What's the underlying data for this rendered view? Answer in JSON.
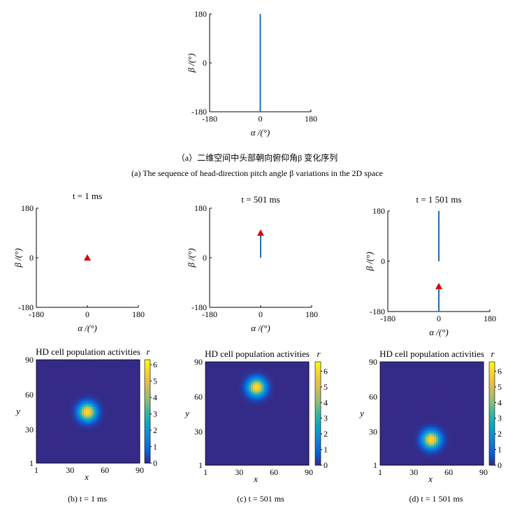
{
  "figure": {
    "caption_a_cn": "（a）二维空间中头部朝向俯仰角β 变化序列",
    "caption_a_en": "(a) The sequence of head-direction pitch angle β variations in the 2D space",
    "caption_b": "(b) t = 1 ms",
    "caption_c": "(c) t = 501 ms",
    "caption_d": "(d) t = 1 501 ms"
  },
  "colors": {
    "trajectory": "#1f6fb5",
    "marker": "#d90000",
    "axis": "#000000"
  },
  "chart_data": [
    {
      "id": "a",
      "type": "line",
      "title": "",
      "xlabel": "α /(°)",
      "ylabel": "β /(°)",
      "xlim": [
        -180,
        180
      ],
      "ylim": [
        -180,
        180
      ],
      "xticks": [
        -180,
        0,
        180
      ],
      "yticks": [
        -180,
        0,
        180
      ],
      "series": [
        {
          "x": [
            0,
            0
          ],
          "y": [
            -180,
            180
          ]
        }
      ]
    },
    {
      "id": "b1",
      "type": "line",
      "title": "t = 1 ms",
      "xlabel": "α /(°)",
      "ylabel": "β /(°)",
      "xlim": [
        -180,
        180
      ],
      "ylim": [
        -180,
        180
      ],
      "xticks": [
        -180,
        0,
        180
      ],
      "yticks": [
        -180,
        0,
        180
      ],
      "series": [],
      "marker": {
        "shape": "triangle",
        "x": 0,
        "y": 0
      }
    },
    {
      "id": "c1",
      "type": "line",
      "title": "t = 501 ms",
      "xlabel": "α /(°)",
      "ylabel": "β /(°)",
      "xlim": [
        -180,
        180
      ],
      "ylim": [
        -180,
        180
      ],
      "xticks": [
        -180,
        0,
        180
      ],
      "yticks": [
        -180,
        0,
        180
      ],
      "series": [
        {
          "x": [
            0,
            0
          ],
          "y": [
            0,
            90
          ]
        }
      ],
      "marker": {
        "shape": "triangle",
        "x": 0,
        "y": 90
      }
    },
    {
      "id": "d1",
      "type": "line",
      "title": "t = 1 501 ms",
      "xlabel": "α /(°)",
      "ylabel": "β /(°)",
      "xlim": [
        -180,
        180
      ],
      "ylim": [
        -180,
        180
      ],
      "xticks": [
        -180,
        0,
        180
      ],
      "yticks": [
        -180,
        0,
        180
      ],
      "series": [
        {
          "x": [
            0,
            0
          ],
          "y": [
            0,
            180
          ]
        },
        {
          "x": [
            0,
            0
          ],
          "y": [
            -180,
            -90
          ]
        }
      ],
      "marker": {
        "shape": "triangle",
        "x": 0,
        "y": -90
      }
    },
    {
      "id": "b2",
      "type": "heatmap",
      "title": "HD cell population activities",
      "xlabel": "x",
      "ylabel": "y",
      "colorbar_label": "r",
      "xlim": [
        1,
        90
      ],
      "ylim": [
        1,
        90
      ],
      "xticks": [
        1,
        30,
        60,
        90
      ],
      "yticks": [
        1,
        30,
        60,
        90
      ],
      "colorbar_ticks": [
        0,
        1,
        2,
        3,
        4,
        5,
        6
      ],
      "clim": [
        0,
        6.3
      ],
      "bump": {
        "x": 45,
        "y": 45,
        "peak": 6.0
      }
    },
    {
      "id": "c2",
      "type": "heatmap",
      "title": "HD cell population activities",
      "xlabel": "x",
      "ylabel": "y",
      "colorbar_label": "r",
      "xlim": [
        1,
        90
      ],
      "ylim": [
        1,
        90
      ],
      "xticks": [
        1,
        30,
        60,
        90
      ],
      "yticks": [
        1,
        30,
        60,
        90
      ],
      "colorbar_ticks": [
        0,
        1,
        2,
        3,
        4,
        5,
        6
      ],
      "clim": [
        0,
        6.6
      ],
      "bump": {
        "x": 45,
        "y": 68,
        "peak": 6.3
      }
    },
    {
      "id": "d2",
      "type": "heatmap",
      "title": "HD cell population activities",
      "xlabel": "x",
      "ylabel": "y",
      "colorbar_label": "r",
      "xlim": [
        1,
        90
      ],
      "ylim": [
        1,
        90
      ],
      "xticks": [
        1,
        30,
        60,
        90
      ],
      "yticks": [
        1,
        30,
        60,
        90
      ],
      "colorbar_ticks": [
        0,
        1,
        2,
        3,
        4,
        5,
        6
      ],
      "clim": [
        0,
        6.6
      ],
      "bump": {
        "x": 45,
        "y": 23,
        "peak": 6.3
      }
    }
  ]
}
